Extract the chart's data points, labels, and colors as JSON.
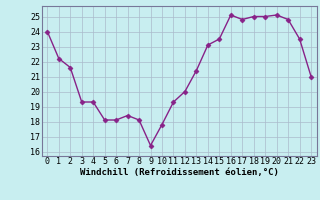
{
  "x": [
    0,
    1,
    2,
    3,
    4,
    5,
    6,
    7,
    8,
    9,
    10,
    11,
    12,
    13,
    14,
    15,
    16,
    17,
    18,
    19,
    20,
    21,
    22,
    23
  ],
  "y": [
    24,
    22.2,
    21.6,
    19.3,
    19.3,
    18.1,
    18.1,
    18.4,
    18.1,
    16.4,
    17.8,
    19.3,
    20.0,
    21.4,
    23.1,
    23.5,
    25.1,
    24.8,
    25.0,
    25.0,
    25.1,
    24.8,
    23.5,
    21.0
  ],
  "yticks": [
    16,
    17,
    18,
    19,
    20,
    21,
    22,
    23,
    24,
    25
  ],
  "line_color": "#882288",
  "markersize": 2.5,
  "linewidth": 1.0,
  "bg_color": "#c8eef0",
  "grid_color": "#aabbcc",
  "xlabel": "Windchill (Refroidissement éolien,°C)",
  "xlabel_fontsize": 6.5,
  "tick_fontsize": 6.0,
  "xlim_min": -0.5,
  "xlim_max": 23.5,
  "ylim_min": 15.7,
  "ylim_max": 25.7
}
